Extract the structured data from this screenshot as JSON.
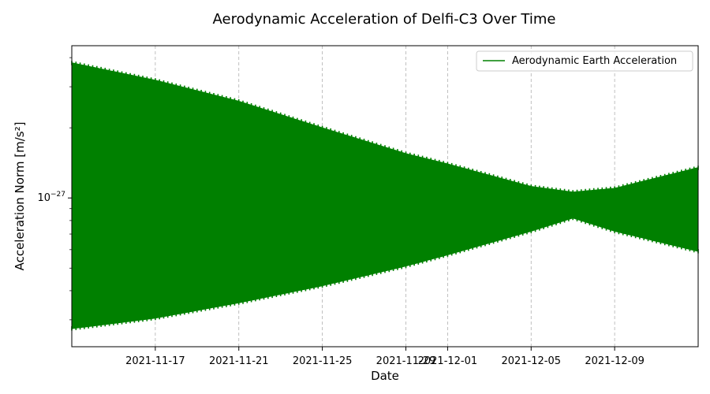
{
  "chart_data": {
    "type": "area",
    "title": "Aerodynamic Acceleration of Delfi-C3 Over Time",
    "xlabel": "Date",
    "ylabel": "Acceleration Norm [m/s²]",
    "y_scale": "log",
    "y_tick_labels": [
      {
        "base": "10",
        "exp": "−27",
        "value": 1e-27
      }
    ],
    "xlim": [
      "2021-11-13",
      "2021-12-13"
    ],
    "ylim": [
      2.3e-28,
      4.5e-27
    ],
    "x_ticks": [
      "2021-11-17",
      "2021-11-21",
      "2021-11-25",
      "2021-11-29",
      "2021-12-01",
      "2021-12-05",
      "2021-12-09"
    ],
    "grid": "x-only, dashed",
    "legend": {
      "placement": "top-right",
      "entries": [
        "Aerodynamic Earth Acceleration"
      ]
    },
    "series": [
      {
        "name": "Aerodynamic Earth Acceleration",
        "color": "#008000",
        "render": "dense oscillation, filled band between envelopes",
        "upper_envelope": [
          {
            "x": "2021-11-13",
            "y": 3.8e-27
          },
          {
            "x": "2021-11-17",
            "y": 3.2e-27
          },
          {
            "x": "2021-11-21",
            "y": 2.6e-27
          },
          {
            "x": "2021-11-25",
            "y": 2e-27
          },
          {
            "x": "2021-11-29",
            "y": 1.55e-27
          },
          {
            "x": "2021-12-01",
            "y": 1.4e-27
          },
          {
            "x": "2021-12-05",
            "y": 1.12e-27
          },
          {
            "x": "2021-12-07",
            "y": 1.06e-27
          },
          {
            "x": "2021-12-09",
            "y": 1.1e-27
          },
          {
            "x": "2021-12-13",
            "y": 1.35e-27
          }
        ],
        "lower_envelope": [
          {
            "x": "2021-11-13",
            "y": 2.75e-28
          },
          {
            "x": "2021-11-17",
            "y": 3.05e-28
          },
          {
            "x": "2021-11-21",
            "y": 3.55e-28
          },
          {
            "x": "2021-11-25",
            "y": 4.2e-28
          },
          {
            "x": "2021-11-29",
            "y": 5.1e-28
          },
          {
            "x": "2021-12-01",
            "y": 5.7e-28
          },
          {
            "x": "2021-12-05",
            "y": 7.2e-28
          },
          {
            "x": "2021-12-07",
            "y": 8.2e-28
          },
          {
            "x": "2021-12-09",
            "y": 7.2e-28
          },
          {
            "x": "2021-12-13",
            "y": 5.9e-28
          }
        ]
      }
    ]
  }
}
